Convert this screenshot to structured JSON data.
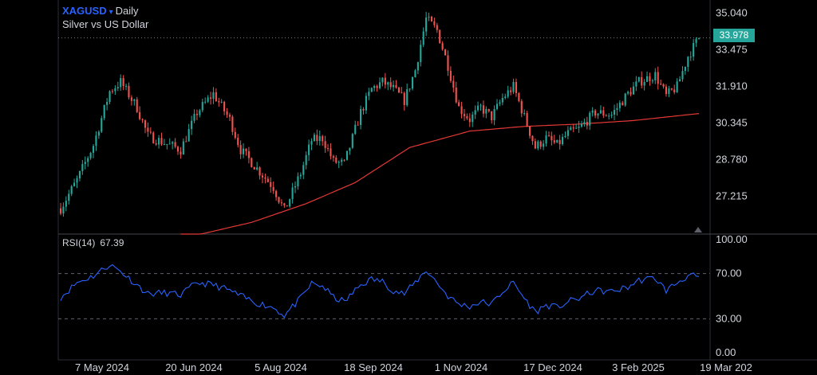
{
  "header": {
    "symbol": "XAGUSD",
    "caret": "▾",
    "interval": "Daily",
    "description": "Silver vs US Dollar"
  },
  "price_tag": "33.978",
  "rsi": {
    "label": "RSI(14)",
    "value": "67.39"
  },
  "colors": {
    "up": "#26a69a",
    "down": "#ef5350",
    "ma": "#e53935",
    "rsi": "#2962ff",
    "tag": "#26a69a"
  },
  "chart_data": [
    {
      "type": "candlestick",
      "title": "XAGUSD · Daily",
      "subtitle": "Silver vs US Dollar",
      "y_ticks": [
        "35.040",
        "33.475",
        "31.910",
        "30.345",
        "28.780",
        "27.215"
      ],
      "ylim": [
        25.6,
        35.6
      ],
      "x_ticks": [
        "7 May 2024",
        "20 Jun 2024",
        "5 Aug 2024",
        "18 Sep 2024",
        "1 Nov 2024",
        "17 Dec 2024",
        "3 Feb 2025",
        "19 Mar 202"
      ],
      "last_price": 33.978,
      "close_path": [
        [
          0,
          26.7
        ],
        [
          6,
          27.9
        ],
        [
          12,
          29.4
        ],
        [
          18,
          31.7
        ],
        [
          22,
          32.1
        ],
        [
          28,
          31.0
        ],
        [
          32,
          29.8
        ],
        [
          38,
          29.5
        ],
        [
          44,
          29.2
        ],
        [
          50,
          30.8
        ],
        [
          56,
          31.6
        ],
        [
          62,
          30.5
        ],
        [
          66,
          29.2
        ],
        [
          72,
          28.4
        ],
        [
          78,
          27.6
        ],
        [
          82,
          26.6
        ],
        [
          88,
          28.2
        ],
        [
          92,
          29.6
        ],
        [
          96,
          29.7
        ],
        [
          100,
          28.7
        ],
        [
          104,
          28.6
        ],
        [
          110,
          30.8
        ],
        [
          114,
          31.8
        ],
        [
          118,
          32.1
        ],
        [
          122,
          31.8
        ],
        [
          126,
          31.3
        ],
        [
          130,
          32.6
        ],
        [
          134,
          34.8
        ],
        [
          138,
          34.3
        ],
        [
          142,
          32.8
        ],
        [
          146,
          31.0
        ],
        [
          150,
          30.5
        ],
        [
          154,
          31.0
        ],
        [
          158,
          30.6
        ],
        [
          162,
          31.4
        ],
        [
          166,
          31.9
        ],
        [
          170,
          30.6
        ],
        [
          174,
          29.3
        ],
        [
          178,
          29.7
        ],
        [
          182,
          29.4
        ],
        [
          186,
          29.9
        ],
        [
          190,
          30.1
        ],
        [
          196,
          30.8
        ],
        [
          202,
          30.7
        ],
        [
          208,
          31.6
        ],
        [
          212,
          32.1
        ],
        [
          218,
          32.4
        ],
        [
          222,
          31.5
        ],
        [
          226,
          31.9
        ],
        [
          230,
          33.2
        ],
        [
          234,
          33.978
        ]
      ],
      "series": [
        {
          "type": "line",
          "kind": "moving-average",
          "points": [
            [
              44,
              25.4
            ],
            [
              70,
              26.1
            ],
            [
              90,
              26.9
            ],
            [
              108,
              27.8
            ],
            [
              128,
              29.3
            ],
            [
              150,
              30.0
            ],
            [
              170,
              30.2
            ],
            [
              190,
              30.3
            ],
            [
              210,
              30.45
            ],
            [
              222,
              30.6
            ],
            [
              234,
              30.75
            ]
          ]
        }
      ]
    },
    {
      "type": "line",
      "title": "RSI(14)",
      "y_ticks": [
        "100.00",
        "70.00",
        "30.00",
        "0.00"
      ],
      "ylim": [
        0,
        100
      ],
      "levels": [
        70,
        30
      ],
      "last_value": 67.39,
      "points": [
        [
          0,
          49
        ],
        [
          6,
          62
        ],
        [
          12,
          68
        ],
        [
          18,
          78
        ],
        [
          22,
          72
        ],
        [
          28,
          60
        ],
        [
          32,
          52
        ],
        [
          38,
          53
        ],
        [
          44,
          51
        ],
        [
          50,
          62
        ],
        [
          56,
          60
        ],
        [
          62,
          55
        ],
        [
          66,
          50
        ],
        [
          72,
          44
        ],
        [
          78,
          40
        ],
        [
          82,
          33
        ],
        [
          88,
          48
        ],
        [
          92,
          61
        ],
        [
          96,
          59
        ],
        [
          100,
          49
        ],
        [
          104,
          45
        ],
        [
          110,
          60
        ],
        [
          114,
          65
        ],
        [
          118,
          63
        ],
        [
          122,
          55
        ],
        [
          126,
          52
        ],
        [
          130,
          62
        ],
        [
          134,
          73
        ],
        [
          138,
          62
        ],
        [
          142,
          50
        ],
        [
          146,
          43
        ],
        [
          150,
          41
        ],
        [
          154,
          45
        ],
        [
          158,
          43
        ],
        [
          162,
          54
        ],
        [
          166,
          62
        ],
        [
          170,
          48
        ],
        [
          174,
          36
        ],
        [
          178,
          42
        ],
        [
          182,
          40
        ],
        [
          186,
          45
        ],
        [
          190,
          48
        ],
        [
          196,
          55
        ],
        [
          202,
          54
        ],
        [
          208,
          58
        ],
        [
          212,
          64
        ],
        [
          218,
          66
        ],
        [
          222,
          55
        ],
        [
          226,
          62
        ],
        [
          230,
          68
        ],
        [
          234,
          67.39
        ]
      ]
    }
  ]
}
